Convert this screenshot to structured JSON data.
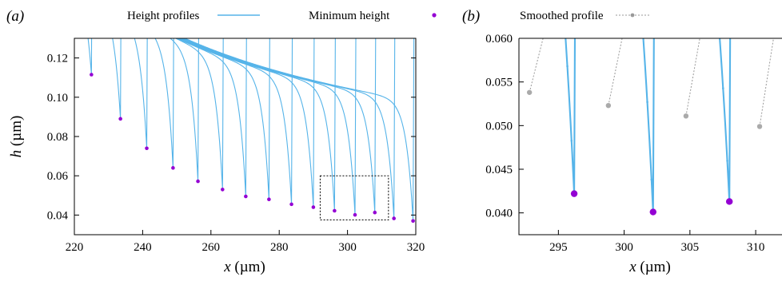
{
  "chart_data": [
    {
      "panel_label": "(a)",
      "type": "line",
      "xlabel_var": "x",
      "ylabel_var": "h",
      "unit": " (µm)",
      "xlim": [
        220,
        320
      ],
      "ylim": [
        0.03,
        0.13
      ],
      "xticks": [
        "220",
        "240",
        "260",
        "280",
        "300",
        "320"
      ],
      "yticks": [
        "0.04",
        "0.06",
        "0.08",
        "0.10",
        "0.12"
      ],
      "grid": false,
      "legend_position": "top",
      "legend": [
        {
          "label": "Height profiles",
          "marker": "line",
          "color": "#56b4e9"
        },
        {
          "label": "Minimum height",
          "marker": "point",
          "color": "#9400d3"
        }
      ],
      "series": [
        {
          "name": "Minimum height",
          "x": [
            225.0,
            233.5,
            241.2,
            248.9,
            256.2,
            263.4,
            270.2,
            277.0,
            283.6,
            290.0,
            296.2,
            302.2,
            308.0,
            313.6,
            319.2
          ],
          "y": [
            0.1115,
            0.089,
            0.074,
            0.064,
            0.0572,
            0.053,
            0.0495,
            0.048,
            0.0455,
            0.044,
            0.0422,
            0.0401,
            0.0413,
            0.0383,
            0.037
          ]
        }
      ],
      "inset_box": {
        "xlim": [
          292,
          312
        ],
        "ylim": [
          0.0375,
          0.06
        ]
      }
    },
    {
      "panel_label": "(b)",
      "type": "line",
      "xlabel_var": "x",
      "unit": " (µm)",
      "xlim": [
        292,
        312
      ],
      "ylim": [
        0.0375,
        0.06
      ],
      "xticks": [
        "295",
        "300",
        "305",
        "310"
      ],
      "yticks": [
        "0.040",
        "0.045",
        "0.050",
        "0.055",
        "0.060"
      ],
      "grid": false,
      "legend_position": "top",
      "legend": [
        {
          "label": "Smoothed profile",
          "marker": "dotted-line-point",
          "color": "#999999"
        }
      ],
      "series": [
        {
          "name": "Minimum height",
          "x": [
            296.2,
            302.2,
            308.0
          ],
          "y": [
            0.0422,
            0.0401,
            0.0413
          ]
        },
        {
          "name": "Smoothed profile",
          "x": [
            292.8,
            298.8,
            304.7,
            310.3
          ],
          "y": [
            0.0538,
            0.0523,
            0.0511,
            0.0499
          ]
        }
      ]
    }
  ]
}
